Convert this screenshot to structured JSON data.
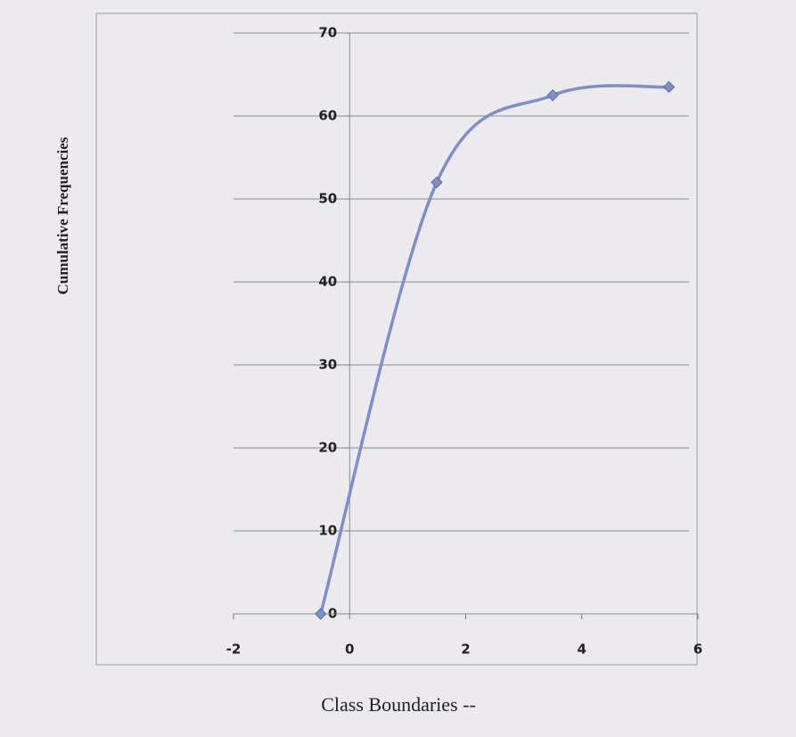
{
  "chart_data": {
    "type": "line",
    "x_label": "Class Boundaries --",
    "y_label": "Cumulative Frequencies",
    "x": [
      -0.5,
      1.5,
      3.5,
      5.5
    ],
    "series": [
      {
        "color": "#7d8fc6",
        "values": [
          0,
          52,
          62.5,
          63.5
        ]
      }
    ],
    "xlim": [
      -2,
      6
    ],
    "xticks": [
      -2,
      0,
      2,
      4,
      6
    ],
    "ylim": [
      0,
      70
    ],
    "yticks": [
      0,
      10,
      20,
      30,
      40,
      50,
      60,
      70
    ],
    "grid": true,
    "smooth": true,
    "markers": "diamond"
  }
}
